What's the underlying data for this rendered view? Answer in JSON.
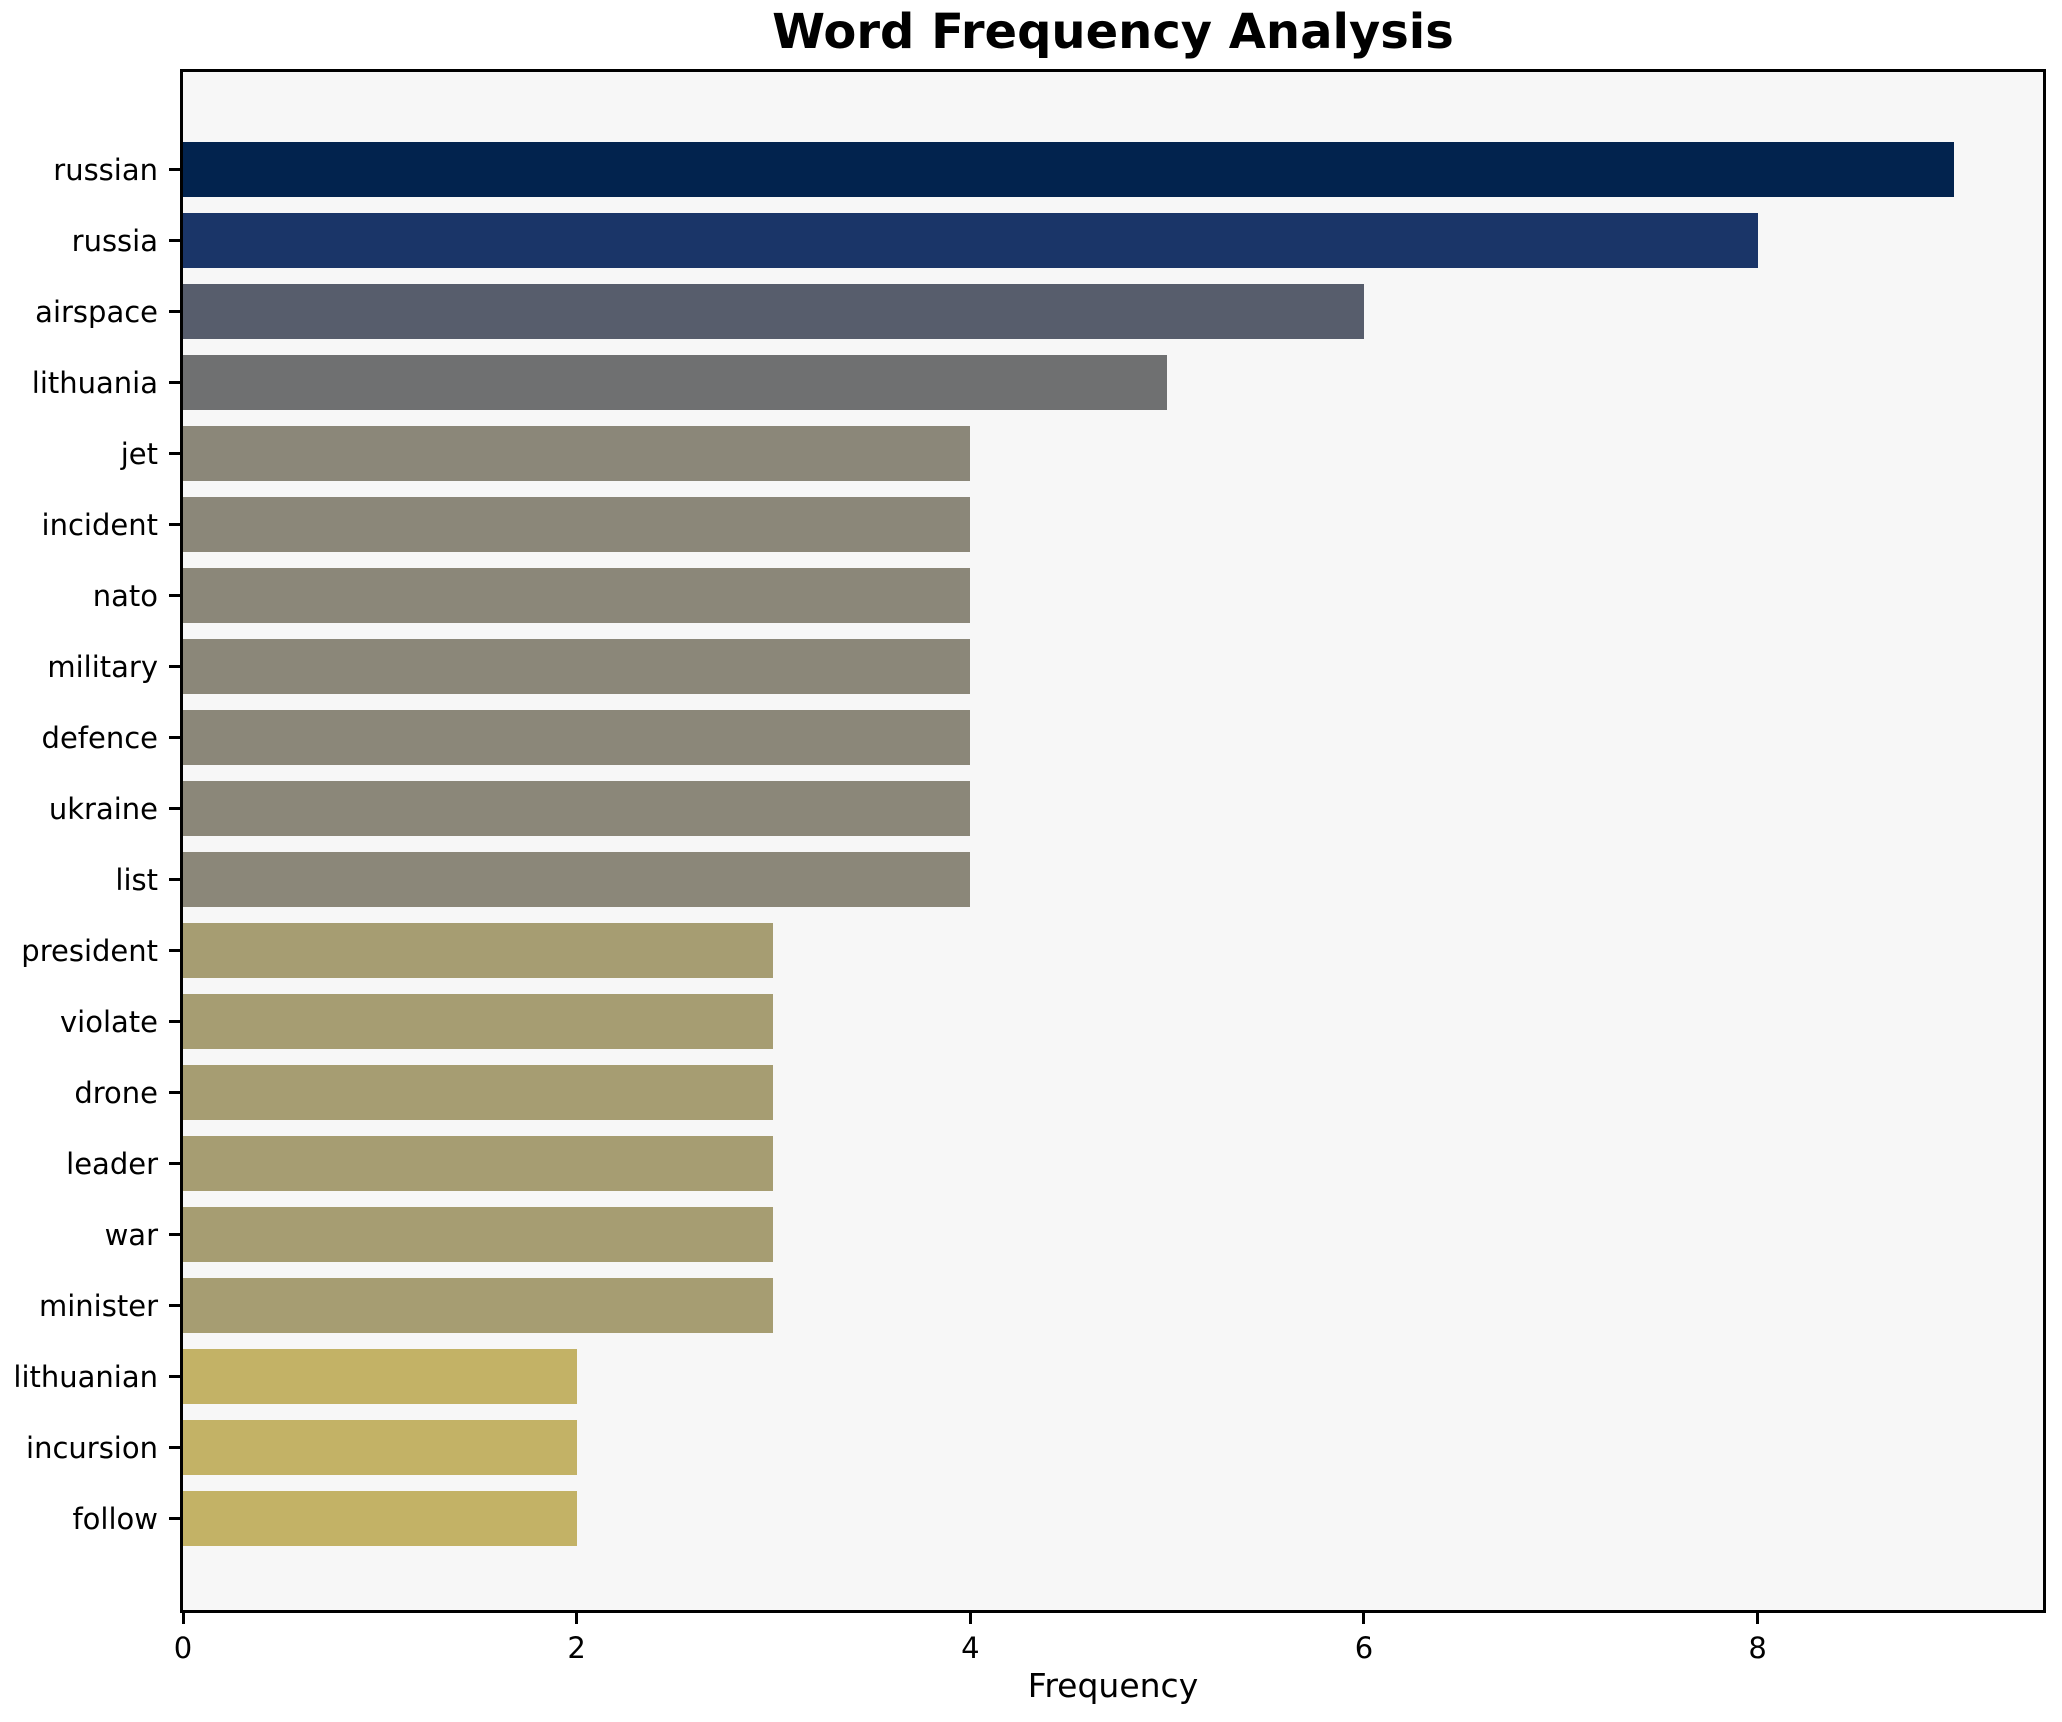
{
  "chart_data": {
    "type": "bar",
    "orientation": "horizontal",
    "title": "Word Frequency Analysis",
    "xlabel": "Frequency",
    "ylabel": "",
    "categories": [
      "russian",
      "russia",
      "airspace",
      "lithuania",
      "jet",
      "incident",
      "nato",
      "military",
      "defence",
      "ukraine",
      "list",
      "president",
      "violate",
      "drone",
      "leader",
      "war",
      "minister",
      "lithuanian",
      "incursion",
      "follow"
    ],
    "values": [
      9,
      8,
      6,
      5,
      4,
      4,
      4,
      4,
      4,
      4,
      4,
      3,
      3,
      3,
      3,
      3,
      3,
      2,
      2,
      2
    ],
    "bar_colors": [
      "#02234E",
      "#1A3568",
      "#575D6C",
      "#6F7071",
      "#8B8779",
      "#8B8779",
      "#8B8779",
      "#8B8779",
      "#8B8779",
      "#8B8779",
      "#8B8779",
      "#A69D72",
      "#A69D72",
      "#A69D72",
      "#A69D72",
      "#A69D72",
      "#A69D72",
      "#C3B266",
      "#C3B266",
      "#C3B266"
    ],
    "x_ticks": [
      0,
      2,
      4,
      6,
      8
    ],
    "xlim": [
      0,
      9.45
    ],
    "grid": false,
    "legend_position": "none",
    "plot_background": "#F7F7F7",
    "figure_background": "#FFFFFF",
    "spine_color": "#000000",
    "text_color": "#000000"
  }
}
